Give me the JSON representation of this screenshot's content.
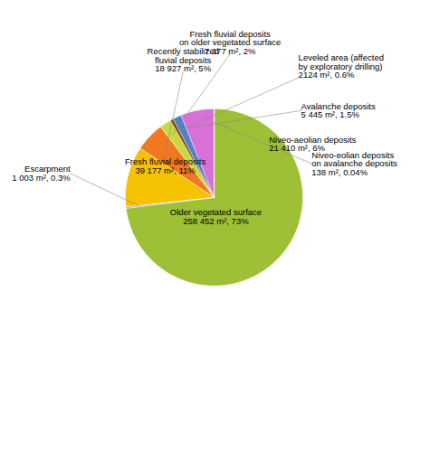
{
  "chart_data": {
    "type": "pie",
    "categories": [
      "Older vegetated surface\n258 452 m², 73%",
      "Escarpment\n1 003 m², 0.3%",
      "Fresh fluvial deposits\n39 177 m², 11%",
      "Recently stabilized\nfluvial deposits\n18 927 m², 5%",
      "Fresh fluvial deposits\non older vegetated surface\n7 377 m², 2%",
      "Leveled area (affected\nby exploratory drilling)\n2124 m², 0.6%",
      "Avalanche deposits\n5 445 m², 1.5%",
      "Niveo-aeolian deposits\n21 410 m², 6%",
      "Niveo-eolian deposits\non avalanche deposits\n138 m², 0.04%"
    ],
    "values": [
      258452,
      1003,
      39177,
      18927,
      7377,
      2124,
      5445,
      21410,
      138
    ],
    "colors": [
      "#9dc036",
      "#aaaaaa",
      "#f5c200",
      "#f07820",
      "#c8d940",
      "#8b4513",
      "#5080c8",
      "#d870d8",
      "#9dc036"
    ],
    "tick_labels": false
  }
}
